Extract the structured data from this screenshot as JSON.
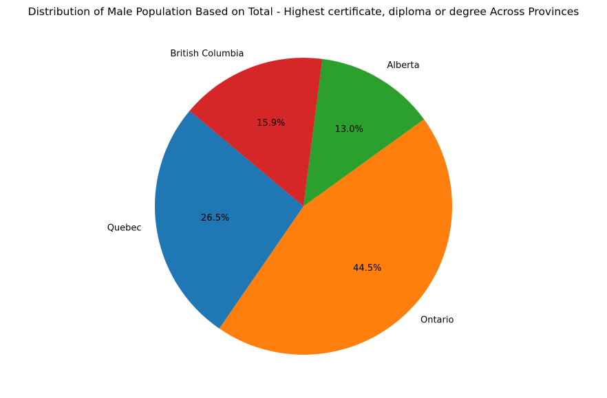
{
  "chart_data": {
    "type": "pie",
    "title": "Distribution of Male Population Based on Total - Highest certificate, diploma or degree Across Provinces",
    "start_angle_deg": 140,
    "direction": "counterclockwise",
    "slices": [
      {
        "label": "Quebec",
        "percent_label": "26.5%",
        "value": 26.5,
        "color": "#1f77b4"
      },
      {
        "label": "Ontario",
        "percent_label": "44.5%",
        "value": 44.5,
        "color": "#ff7f0e"
      },
      {
        "label": "Alberta",
        "percent_label": "13.0%",
        "value": 13.0,
        "color": "#2ca02c"
      },
      {
        "label": "British Columbia",
        "percent_label": "15.9%",
        "value": 15.9,
        "color": "#d62728"
      }
    ]
  }
}
